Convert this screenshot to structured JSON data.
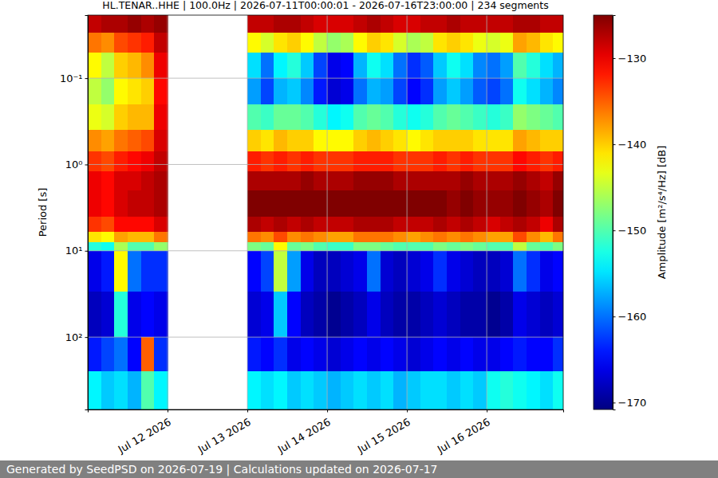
{
  "chart_data": {
    "type": "heatmap",
    "title": "HL.TENAR..HHE | 100.0Hz | 2026-07-11T00:00:01 - 2026-07-16T23:00:00 | 234 segments",
    "ylabel": "Period [s]",
    "footer": "Generated by SeedPSD on 2026-07-19 | Calculations updated on 2026-07-17",
    "xlim": [
      "2026-07-11T00:00:01",
      "2026-07-16T23:00:00"
    ],
    "xticks": [
      {
        "value": "2026-07-12",
        "label": "Jul 12 2026"
      },
      {
        "value": "2026-07-13",
        "label": "Jul 13 2026"
      },
      {
        "value": "2026-07-14",
        "label": "Jul 14 2026"
      },
      {
        "value": "2026-07-15",
        "label": "Jul 15 2026"
      },
      {
        "value": "2026-07-16",
        "label": "Jul 16 2026"
      }
    ],
    "ylim": [
      0.0186,
      690
    ],
    "yticks": [
      {
        "value": 0.1,
        "label": "10⁻¹"
      },
      {
        "value": 1,
        "label": "10⁰"
      },
      {
        "value": 10,
        "label": "10¹"
      },
      {
        "value": 100,
        "label": "10²"
      }
    ],
    "log": "y",
    "grid": true,
    "cells": {
      "x_edges": [
        "2026-07-11T00:00:01",
        "2026-07-11T04:00:00",
        "2026-07-11T08:00:00",
        "2026-07-11T12:00:00",
        "2026-07-11T16:00:00",
        "2026-07-11T20:00:00",
        "2026-07-12T00:00:00",
        "2026-07-12T04:00:00",
        "2026-07-12T08:00:00",
        "2026-07-12T12:00:00",
        "2026-07-12T16:00:00",
        "2026-07-12T20:00:00",
        "2026-07-13T00:00:00",
        "2026-07-13T04:00:00",
        "2026-07-13T08:00:00",
        "2026-07-13T12:00:00",
        "2026-07-13T16:00:00",
        "2026-07-13T20:00:00",
        "2026-07-14T00:00:00",
        "2026-07-14T04:00:00",
        "2026-07-14T08:00:00",
        "2026-07-14T12:00:00",
        "2026-07-14T16:00:00",
        "2026-07-14T20:00:00",
        "2026-07-15T00:00:00",
        "2026-07-15T04:00:00",
        "2026-07-15T08:00:00",
        "2026-07-15T12:00:00",
        "2026-07-15T16:00:00",
        "2026-07-15T20:00:00",
        "2026-07-16T00:00:00",
        "2026-07-16T04:00:00",
        "2026-07-16T08:00:00",
        "2026-07-16T12:00:00",
        "2026-07-16T16:00:00",
        "2026-07-16T20:00:00",
        "2026-07-16T23:00:00"
      ],
      "y_edges": [
        0.0186,
        0.03,
        0.05,
        0.1,
        0.2,
        0.4,
        0.7,
        1.2,
        2,
        4,
        6,
        8,
        10,
        30,
        100,
        250,
        690
      ],
      "values": [
        [
          -128,
          -136,
          -142,
          -145,
          -143,
          -137,
          -133,
          -130,
          -130,
          -133,
          -141,
          -152,
          -166,
          -168,
          -164,
          -154
        ],
        [
          -127,
          -137,
          -145,
          -147,
          -144,
          -138,
          -134,
          -131,
          -131,
          -134,
          -142,
          -153,
          -164,
          -167,
          -162,
          -156
        ],
        [
          -127,
          -134,
          -140,
          -142,
          -140,
          -136,
          -132,
          -129,
          -129,
          -131,
          -138,
          -146,
          -142,
          -152,
          -160,
          -155
        ],
        [
          -126,
          -133,
          -139,
          -141,
          -139,
          -135,
          -131,
          -129,
          -128,
          -131,
          -139,
          -150,
          -160,
          -166,
          -165,
          -157
        ],
        [
          -127,
          -132,
          -137,
          -140,
          -139,
          -134,
          -130,
          -128,
          -128,
          -131,
          -139,
          -150,
          -163,
          -165,
          -135,
          -150
        ],
        [
          -126,
          -128,
          -130,
          -131,
          -130,
          -129,
          -128,
          -127,
          -127,
          -129,
          -136,
          -147,
          -163,
          -166,
          -163,
          -154
        ],
        null,
        null,
        null,
        null,
        null,
        null,
        [
          -128,
          -142,
          -155,
          -158,
          -150,
          -140,
          -132,
          -127,
          -125,
          -127,
          -136,
          -148,
          -165,
          -167,
          -164,
          -154
        ],
        [
          -128,
          -144,
          -160,
          -162,
          -151,
          -141,
          -133,
          -127,
          -125,
          -128,
          -137,
          -149,
          -162,
          -166,
          -165,
          -155
        ],
        [
          -127,
          -141,
          -154,
          -157,
          -149,
          -139,
          -132,
          -127,
          -125,
          -127,
          -134,
          -142,
          -145,
          -156,
          -163,
          -154
        ],
        [
          -127,
          -140,
          -152,
          -156,
          -149,
          -140,
          -133,
          -127,
          -125,
          -128,
          -137,
          -149,
          -158,
          -165,
          -166,
          -156
        ],
        [
          -128,
          -142,
          -156,
          -159,
          -150,
          -140,
          -132,
          -126,
          -125,
          -127,
          -136,
          -148,
          -166,
          -168,
          -165,
          -155
        ],
        [
          -129,
          -145,
          -162,
          -164,
          -152,
          -142,
          -133,
          -127,
          -125,
          -128,
          -137,
          -150,
          -168,
          -169,
          -166,
          -156
        ],
        [
          -129,
          -147,
          -166,
          -167,
          -154,
          -142,
          -133,
          -127,
          -125,
          -128,
          -138,
          -151,
          -168,
          -170,
          -167,
          -157
        ],
        [
          -129,
          -146,
          -165,
          -166,
          -153,
          -142,
          -133,
          -127,
          -125,
          -128,
          -138,
          -151,
          -167,
          -169,
          -166,
          -156
        ],
        [
          -128,
          -142,
          -157,
          -160,
          -150,
          -140,
          -132,
          -126,
          -125,
          -127,
          -136,
          -148,
          -166,
          -168,
          -165,
          -155
        ],
        [
          -127,
          -140,
          -153,
          -157,
          -149,
          -139,
          -132,
          -126,
          -125,
          -127,
          -136,
          -148,
          -160,
          -166,
          -166,
          -156
        ],
        [
          -128,
          -141,
          -155,
          -158,
          -150,
          -140,
          -132,
          -126,
          -125,
          -127,
          -136,
          -149,
          -167,
          -168,
          -165,
          -155
        ],
        [
          -129,
          -144,
          -160,
          -162,
          -152,
          -141,
          -133,
          -127,
          -125,
          -128,
          -137,
          -150,
          -168,
          -169,
          -166,
          -157
        ],
        [
          -129,
          -146,
          -163,
          -165,
          -153,
          -142,
          -133,
          -127,
          -125,
          -128,
          -138,
          -150,
          -167,
          -169,
          -167,
          -156
        ],
        [
          -128,
          -145,
          -161,
          -163,
          -152,
          -141,
          -133,
          -127,
          -125,
          -128,
          -137,
          -150,
          -166,
          -168,
          -166,
          -155
        ],
        [
          -128,
          -141,
          -156,
          -158,
          -150,
          -140,
          -132,
          -127,
          -125,
          -127,
          -136,
          -148,
          -163,
          -167,
          -165,
          -155
        ],
        [
          -127,
          -140,
          -153,
          -156,
          -149,
          -140,
          -133,
          -127,
          -126,
          -128,
          -137,
          -149,
          -166,
          -168,
          -166,
          -156
        ],
        [
          -128,
          -141,
          -155,
          -158,
          -150,
          -140,
          -132,
          -126,
          -125,
          -127,
          -136,
          -148,
          -167,
          -169,
          -165,
          -155
        ],
        [
          -128,
          -143,
          -159,
          -161,
          -151,
          -141,
          -133,
          -127,
          -126,
          -128,
          -137,
          -149,
          -168,
          -169,
          -166,
          -156
        ],
        [
          -128,
          -144,
          -160,
          -162,
          -152,
          -141,
          -133,
          -127,
          -126,
          -129,
          -138,
          -150,
          -168,
          -170,
          -166,
          -153
        ],
        [
          -128,
          -143,
          -158,
          -160,
          -151,
          -141,
          -133,
          -127,
          -126,
          -128,
          -138,
          -150,
          -167,
          -169,
          -165,
          -152
        ],
        [
          -127,
          -138,
          -150,
          -153,
          -147,
          -138,
          -131,
          -126,
          -125,
          -127,
          -134,
          -145,
          -160,
          -166,
          -164,
          -153
        ],
        [
          -127,
          -139,
          -152,
          -155,
          -148,
          -139,
          -132,
          -127,
          -126,
          -128,
          -137,
          -149,
          -163,
          -167,
          -165,
          -154
        ],
        [
          -128,
          -141,
          -155,
          -157,
          -149,
          -140,
          -133,
          -128,
          -127,
          -130,
          -139,
          -150,
          -166,
          -168,
          -165,
          -155
        ],
        [
          -128,
          -142,
          -157,
          -159,
          -150,
          -140,
          -132,
          -126,
          -125,
          -127,
          -136,
          -148,
          -165,
          -167,
          -163,
          -153
        ]
      ]
    },
    "colorbar": {
      "label": "Amplitude [m²/s⁴/Hz] [dB]",
      "lim": [
        -170.8,
        -125
      ],
      "ticks": [
        {
          "value": -170,
          "label": "−170"
        },
        {
          "value": -160,
          "label": "−160"
        },
        {
          "value": -150,
          "label": "−150"
        },
        {
          "value": -140,
          "label": "−140"
        },
        {
          "value": -130,
          "label": "−130"
        }
      ]
    }
  }
}
